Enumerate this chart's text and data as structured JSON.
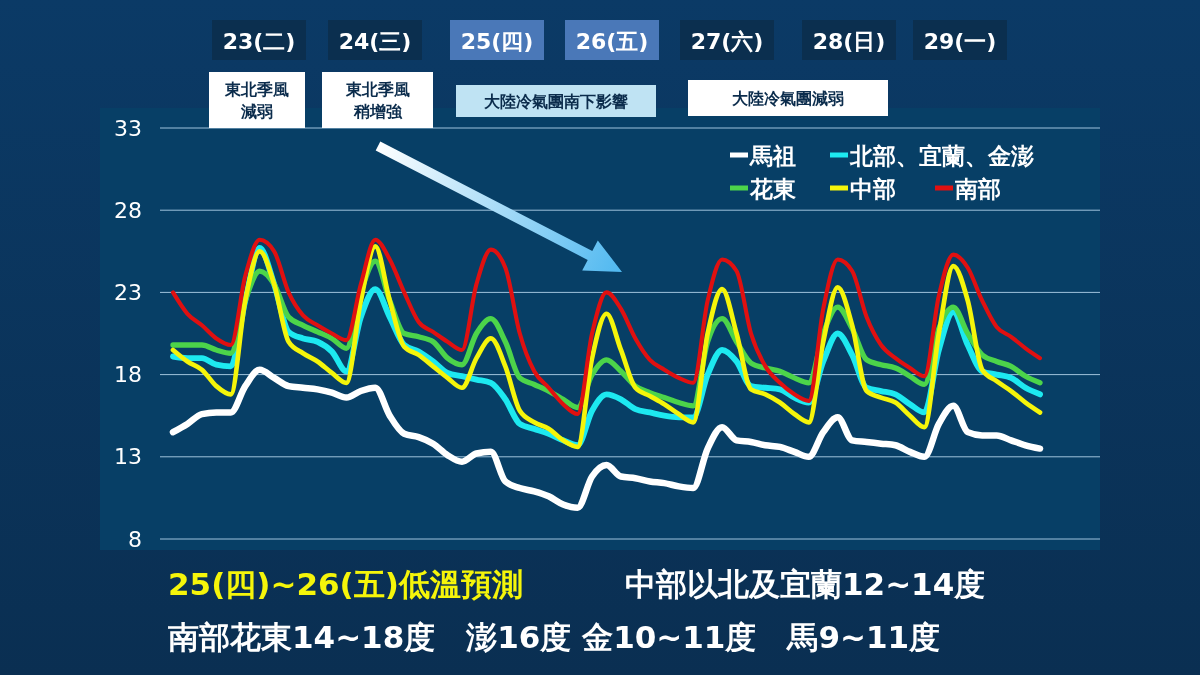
{
  "chart_data": {
    "type": "line",
    "categories": [
      null,
      null,
      null,
      null,
      null,
      null,
      null,
      null,
      null,
      null,
      null,
      null,
      null,
      null,
      null,
      null,
      null,
      null,
      null,
      null,
      null,
      null,
      null,
      null,
      null,
      null,
      null,
      null,
      null,
      null,
      null,
      null,
      null,
      null,
      null,
      null,
      null,
      null,
      null,
      null,
      null,
      null,
      null,
      null,
      null,
      null,
      null,
      null,
      null,
      null,
      null,
      null,
      null,
      null,
      null,
      null,
      null,
      null,
      null,
      null,
      null
    ],
    "series": [
      {
        "name": "馬祖",
        "color": "#ffffff",
        "values": [
          14.5,
          15.0,
          15.6,
          15.7,
          15.7,
          17.3,
          18.3,
          17.8,
          17.3,
          17.2,
          17.1,
          16.9,
          16.6,
          17.0,
          17.2,
          15.5,
          14.4,
          14.2,
          13.8,
          13.1,
          12.7,
          13.2,
          13.3,
          11.5,
          11.1,
          10.9,
          10.6,
          10.1,
          9.9,
          11.8,
          12.5,
          11.8,
          11.7,
          11.5,
          11.4,
          11.2,
          11.1,
          13.5,
          14.8,
          14.0,
          13.9,
          13.7,
          13.6,
          13.3,
          13.0,
          14.5,
          15.4,
          14.0,
          13.9,
          13.8,
          13.7,
          13.3,
          13.0,
          15.0,
          16.1,
          14.5,
          14.3,
          14.3,
          14.0,
          13.7,
          13.5
        ]
      },
      {
        "name": "北部、宜蘭、金澎",
        "color": "#1de9f0",
        "values": [
          19.1,
          19.0,
          19.0,
          18.6,
          18.5,
          22.5,
          25.7,
          23.5,
          20.6,
          20.2,
          20.0,
          19.4,
          18.2,
          21.5,
          23.2,
          21.5,
          19.8,
          19.4,
          18.8,
          18.1,
          17.9,
          17.7,
          17.5,
          16.5,
          15.0,
          14.7,
          14.4,
          14.0,
          13.7,
          15.8,
          16.8,
          16.5,
          15.9,
          15.7,
          15.5,
          15.4,
          15.4,
          18.0,
          19.5,
          18.8,
          17.3,
          17.2,
          17.1,
          16.6,
          16.3,
          18.8,
          20.5,
          19.2,
          17.2,
          17.0,
          16.8,
          16.2,
          15.7,
          19.5,
          21.8,
          19.8,
          18.2,
          18.0,
          17.8,
          17.2,
          16.8
        ]
      },
      {
        "name": "花東",
        "color": "#4cd44a",
        "values": [
          19.8,
          19.8,
          19.8,
          19.5,
          19.3,
          22.5,
          24.3,
          23.5,
          21.5,
          21.0,
          20.6,
          20.2,
          19.6,
          23.0,
          24.9,
          22.5,
          20.5,
          20.3,
          20.0,
          19.0,
          18.6,
          20.5,
          21.4,
          20.0,
          17.8,
          17.4,
          17.0,
          16.5,
          16.0,
          18.0,
          18.9,
          18.2,
          17.3,
          16.9,
          16.6,
          16.3,
          16.1,
          20.0,
          21.4,
          20.0,
          18.7,
          18.4,
          18.2,
          17.8,
          17.5,
          20.5,
          22.1,
          20.8,
          18.9,
          18.6,
          18.4,
          17.9,
          17.4,
          20.8,
          22.1,
          20.5,
          19.2,
          18.8,
          18.5,
          17.9,
          17.5
        ]
      },
      {
        "name": "中部",
        "color": "#f5f50a",
        "values": [
          19.5,
          18.8,
          18.3,
          17.3,
          16.8,
          22.5,
          25.5,
          23.5,
          20.0,
          19.3,
          18.8,
          18.1,
          17.5,
          22.5,
          25.8,
          22.5,
          19.7,
          19.2,
          18.5,
          17.8,
          17.2,
          19.0,
          20.2,
          18.5,
          15.8,
          15.1,
          14.7,
          14.0,
          13.6,
          19.0,
          21.7,
          19.5,
          17.2,
          16.7,
          16.2,
          15.6,
          15.1,
          20.5,
          23.2,
          20.5,
          17.1,
          16.8,
          16.3,
          15.6,
          15.1,
          20.0,
          23.3,
          21.0,
          17.0,
          16.6,
          16.3,
          15.5,
          14.8,
          20.5,
          24.6,
          22.5,
          18.3,
          17.6,
          17.0,
          16.3,
          15.7
        ]
      },
      {
        "name": "南部",
        "color": "#e01010",
        "values": [
          23.0,
          21.7,
          21.0,
          20.2,
          19.8,
          24.0,
          26.2,
          25.5,
          23.0,
          21.6,
          21.0,
          20.5,
          20.1,
          23.5,
          26.2,
          25.0,
          23.0,
          21.2,
          20.6,
          20.0,
          19.5,
          23.5,
          25.6,
          24.5,
          20.5,
          18.2,
          17.2,
          16.2,
          15.6,
          20.5,
          23.0,
          22.0,
          20.2,
          18.9,
          18.3,
          17.8,
          17.5,
          22.5,
          25.0,
          24.3,
          20.5,
          18.5,
          17.5,
          16.8,
          16.4,
          22.0,
          25.0,
          24.3,
          21.5,
          19.8,
          19.0,
          18.4,
          17.9,
          22.8,
          25.3,
          24.5,
          22.5,
          20.9,
          20.3,
          19.6,
          19.0
        ]
      }
    ],
    "ylim": [
      8,
      33
    ],
    "yticks": [
      8,
      13,
      18,
      23,
      28,
      33
    ],
    "grid": "y",
    "legend": "top right",
    "marker": "none",
    "line_style": "solid",
    "annotations": [
      "23(二)",
      "24(三)",
      "25(四)",
      "26(五)",
      "27(六)",
      "28(日)",
      "29(一)",
      "東北季風減弱",
      "東北季風稍增強",
      "大陸冷氣團南下影響",
      "大陸冷氣團減弱",
      "25(四)~26(五)低溫預測",
      "中部以北及宜蘭12~14度",
      "南部花東14~18度　澎16度 金10~11度　馬9~11度"
    ]
  }
}
